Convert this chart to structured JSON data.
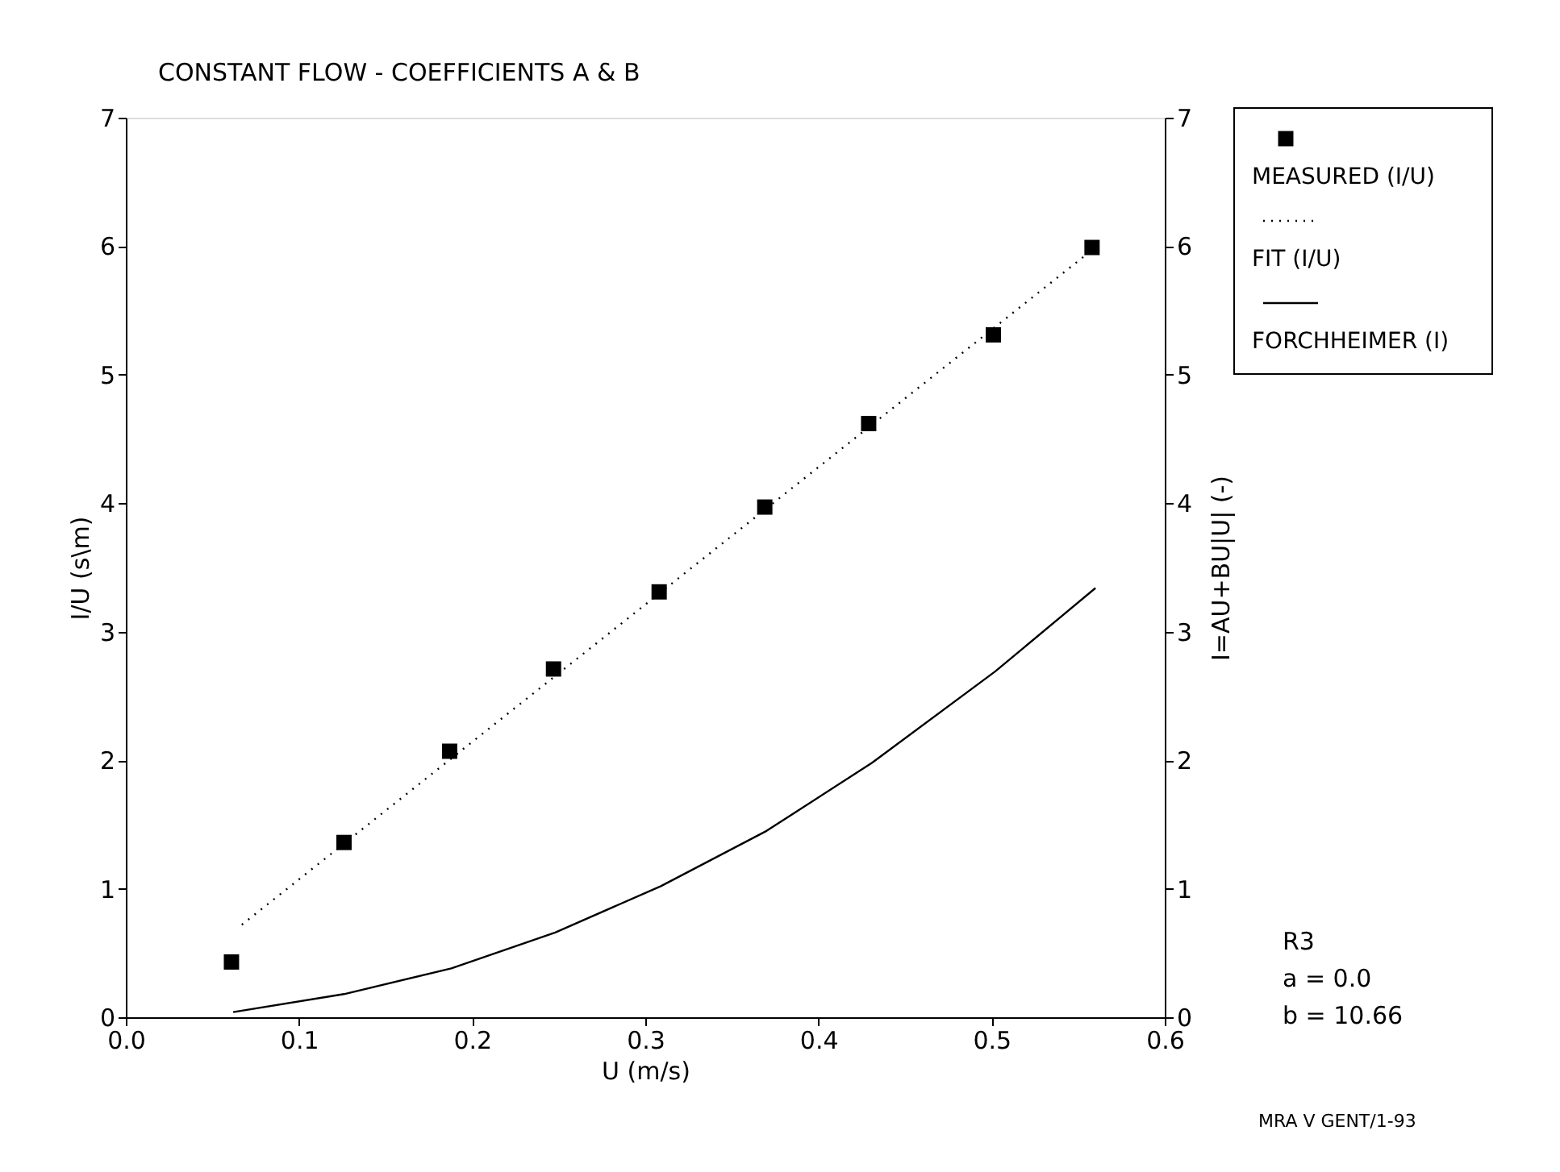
{
  "chart_data": {
    "type": "scatter",
    "title": "CONSTANT FLOW - COEFFICIENTS A & B",
    "xlabel": "U (m/s)",
    "ylabel": "I/U (s\\m)",
    "y2label": "I=AU+BU|U| (-)",
    "xlim": [
      0,
      0.6
    ],
    "xticks": [
      {
        "value": 0,
        "label": "0.0"
      },
      0.1,
      0.2,
      0.3,
      0.4,
      0.5,
      0.6
    ],
    "ylim": [
      0,
      7
    ],
    "yticks": [
      0,
      1,
      2,
      3,
      4,
      5,
      6,
      7
    ],
    "y2lim": [
      0,
      7
    ],
    "y2ticks": [
      0,
      1,
      2,
      3,
      4,
      5,
      6,
      7
    ],
    "grid": false,
    "legend": "right",
    "series": [
      {
        "name": "MEASURED (I/U)",
        "marker": "square",
        "color": "#000000",
        "x": [
          0.061,
          0.126,
          0.187,
          0.247,
          0.308,
          0.369,
          0.429,
          0.501,
          0.558
        ],
        "values": [
          0.43,
          1.36,
          2.07,
          2.71,
          3.31,
          3.97,
          4.62,
          5.31,
          5.99
        ]
      },
      {
        "name": "FIT (I/U)",
        "type": "line",
        "line_style": "dotted",
        "color": "#000000",
        "x": [
          0.067,
          0.558
        ],
        "values": [
          0.72,
          5.97
        ]
      },
      {
        "name": "FORCHHEIMER (I)",
        "type": "line",
        "line_style": "solid",
        "axis": "y2",
        "color": "#000000",
        "x": [
          0.062,
          0.126,
          0.188,
          0.248,
          0.309,
          0.37,
          0.431,
          0.502,
          0.56
        ],
        "values": [
          0.04,
          0.18,
          0.38,
          0.66,
          1.02,
          1.45,
          1.98,
          2.69,
          3.34
        ]
      }
    ],
    "annotations": [
      "R3",
      "a = 0.0",
      "b = 10.66",
      "MRA V GENT/1-93"
    ]
  }
}
